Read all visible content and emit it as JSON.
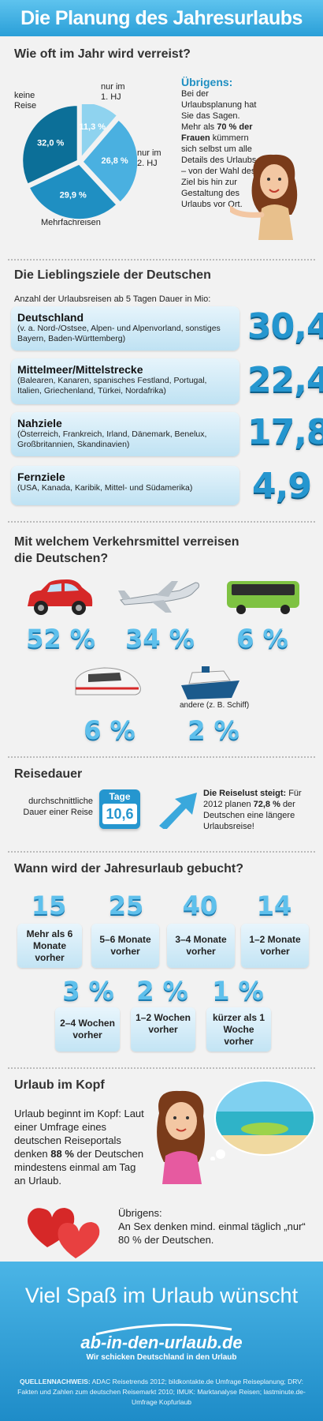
{
  "header": {
    "title": "Die Planung des Jahresurlaubs"
  },
  "frequency": {
    "title": "Wie oft im Jahr wird verreist?",
    "slices": [
      {
        "label": "nur im 1. HJ",
        "value": "11,3 %",
        "pct": 11.3,
        "color": "#8fd3ef"
      },
      {
        "label": "nur im 2. HJ",
        "value": "26,8 %",
        "pct": 26.8,
        "color": "#4ab0e0"
      },
      {
        "label": "Mehrfachreisen",
        "value": "29,9 %",
        "pct": 29.9,
        "color": "#1f8fc2"
      },
      {
        "label": "keine Reise",
        "value": "32,0 %",
        "pct": 32.0,
        "color": "#0c6f98"
      }
    ],
    "note_title": "Übrigens:",
    "note_text_1": "Bei der Urlaubsplanung hat Sie das Sagen. Mehr als",
    "note_bold": "70 % der Frauen",
    "note_text_2": "kümmern sich selbst um alle Details des Urlaubs – von der Wahl des Ziel bis hin zur Gestaltung des Urlaubs vor Ort."
  },
  "destinations": {
    "title": "Die Lieblingsziele der Deutschen",
    "subtitle": "Anzahl der Urlaubsreisen ab 5 Tagen Dauer in Mio:",
    "items": [
      {
        "name": "Deutschland",
        "desc": "(v. a. Nord-/Ostsee, Alpen- und Alpenvorland, sonstiges Bayern, Baden-Württemberg)",
        "value": "30,4"
      },
      {
        "name": "Mittelmeer/Mittelstrecke",
        "desc": "(Balearen, Kanaren, spanisches Festland, Portugal, Italien, Griechenland, Türkei, Nordafrika)",
        "value": "22,4"
      },
      {
        "name": "Nahziele",
        "desc": "(Österreich, Frankreich, Irland, Dänemark, Benelux, Großbritannien, Skandinavien)",
        "value": "17,8"
      },
      {
        "name": "Fernziele",
        "desc": "(USA, Kanada, Karibik, Mittel- und Südamerika)",
        "value": "4,9"
      }
    ]
  },
  "transport": {
    "title_1": "Mit welchem Verkehrsmittel verreisen",
    "title_2": "die Deutschen?",
    "items": [
      {
        "icon": "car-icon",
        "value": "52 %"
      },
      {
        "icon": "airplane-icon",
        "value": "34 %"
      },
      {
        "icon": "bus-icon",
        "value": "6 %"
      },
      {
        "icon": "train-icon",
        "value": "6 %"
      },
      {
        "icon": "ship-icon",
        "value": "2 %",
        "note": "andere (z. B. Schiff)"
      }
    ]
  },
  "duration": {
    "title": "Reisedauer",
    "label": "durchschnittliche Dauer einer Reise",
    "badge_label": "Tage",
    "badge_value": "10,6",
    "trend_bold": "Die Reiselust steigt:",
    "trend_text_1": "Für 2012 planen",
    "trend_pct": "72,8 %",
    "trend_text_2": "der Deutschen eine längere Urlaubsreise!"
  },
  "booking": {
    "title": "Wann wird der Jahresurlaub gebucht?",
    "row1": [
      {
        "pct": "15 %",
        "label": "Mehr als 6 Monate vorher"
      },
      {
        "pct": "25 %",
        "label": "5–6 Monate vorher"
      },
      {
        "pct": "40 %",
        "label": "3–4 Monate vorher"
      },
      {
        "pct": "14 %",
        "label": "1–2 Monate vorher"
      }
    ],
    "row2": [
      {
        "pct": "3 %",
        "label": "2–4 Wochen vorher"
      },
      {
        "pct": "2 %",
        "label": "1–2 Wochen vorher"
      },
      {
        "pct": "1 %",
        "label": "kürzer als 1 Woche vorher"
      }
    ]
  },
  "mind": {
    "title": "Urlaub im Kopf",
    "text_1": "Urlaub beginnt im Kopf: Laut einer Umfrage eines deutschen Reiseportals denken",
    "text_bold": "88 %",
    "text_2": "der Deutschen mindestens einmal am Tag an Urlaub.",
    "note_title": "Übrigens:",
    "note_text": "An Sex denken mind. einmal täglich „nur“ 80 % der Deutschen."
  },
  "footer": {
    "wish": "Viel Spaß im Urlaub wünscht",
    "logo": "ab-in-den-urlaub.de",
    "slogan": "Wir schicken Deutschland in den Urlaub",
    "sources_label": "QUELLENNACHWEIS:",
    "sources": "ADAC Reisetrends 2012; bildkontakte.de Umfrage Reiseplanung; DRV: Fakten und Zahlen zum deutschen Reisemarkt 2010; IMUK: Marktanalyse Reisen; lastminute.de-Umfrage Kopfurlaub"
  }
}
